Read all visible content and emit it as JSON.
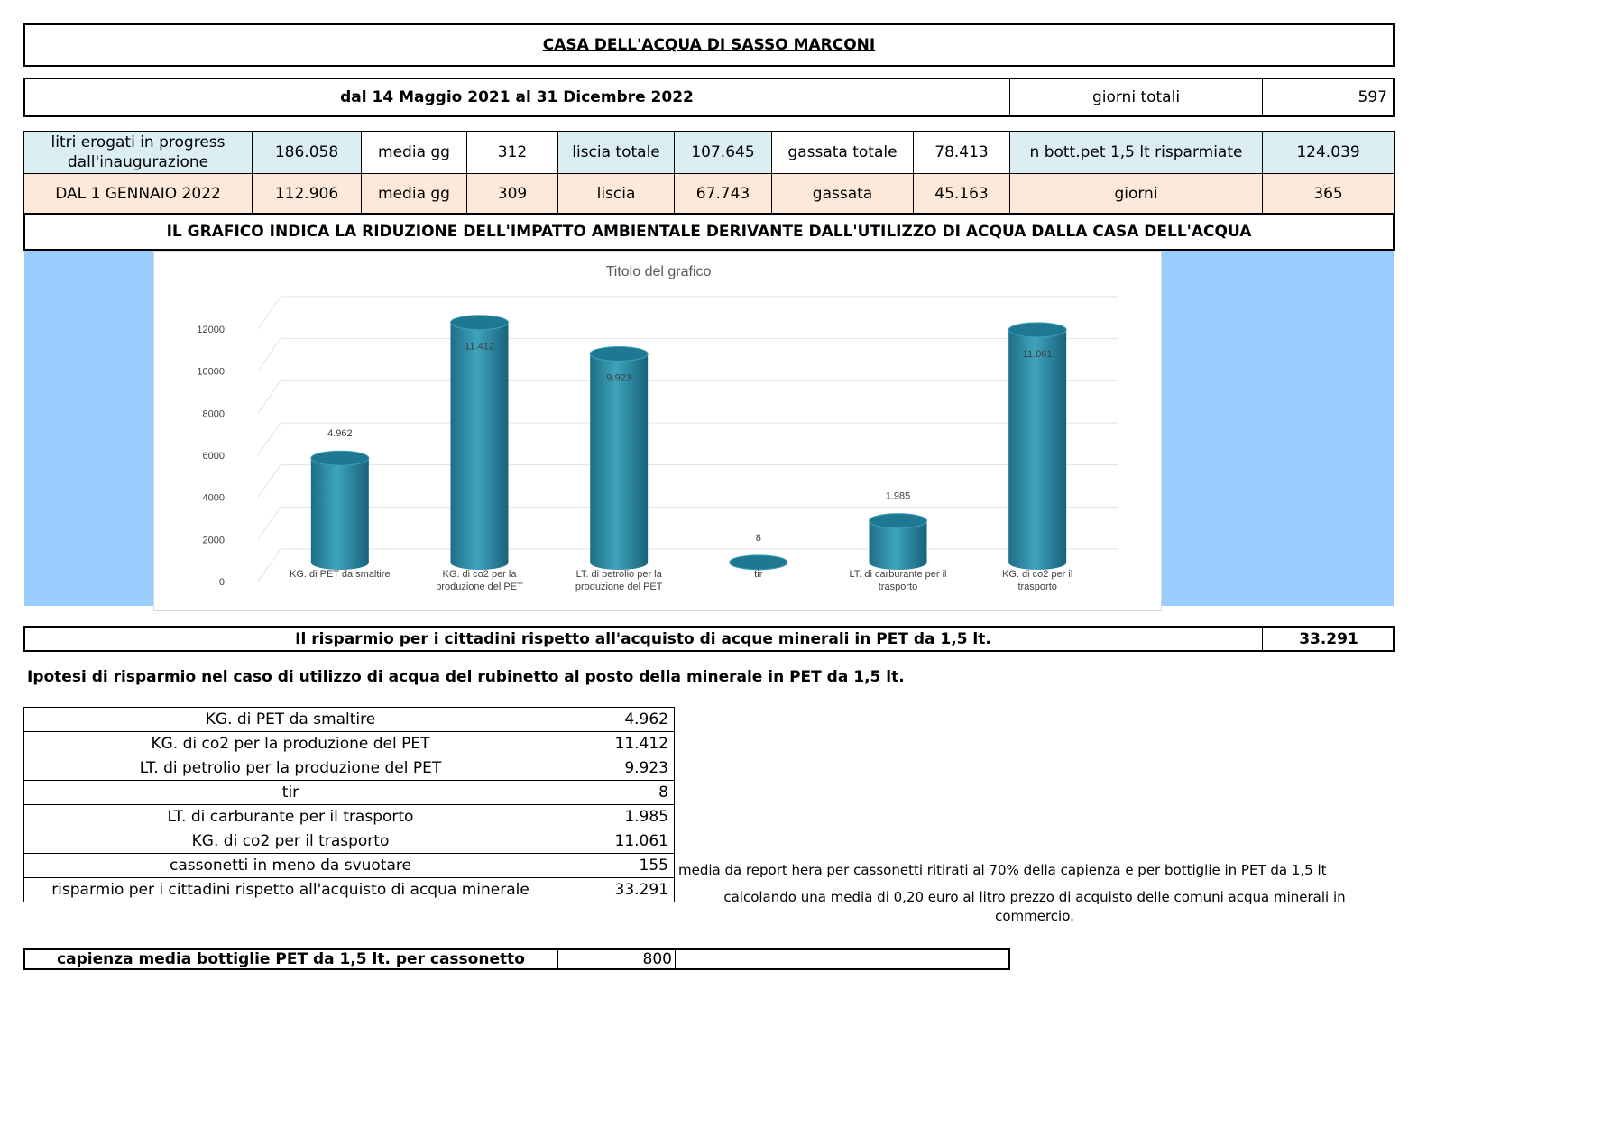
{
  "header": {
    "title": "CASA DELL'ACQUA DI SASSO MARCONI",
    "period": "dal 14 Maggio 2021 al 31 Dicembre 2022",
    "giorni_label": "giorni totali",
    "giorni_value": "597"
  },
  "row1": {
    "label": "litri erogati in progress dall'inaugurazione",
    "total": "186.058",
    "media_label": "media gg",
    "media": "312",
    "liscia_label": "liscia totale",
    "liscia": "107.645",
    "gassata_label": "gassata totale",
    "gassata": "78.413",
    "bott_label": "n bott.pet 1,5 lt risparmiate",
    "bott": "124.039"
  },
  "row2": {
    "label": "DAL 1 GENNAIO 2022",
    "total": "112.906",
    "media_label": "media gg",
    "media": "309",
    "liscia_label": "liscia",
    "liscia": "67.743",
    "gassata_label": "gassata",
    "gassata": "45.163",
    "giorni_label": "giorni",
    "giorni": "365"
  },
  "banner": "IL GRAFICO INDICA LA RIDUZIONE DELL'IMPATTO AMBIENTALE  DERIVANTE DALL'UTILIZZO DI ACQUA DALLA CASA DELL'ACQUA",
  "chart_data": {
    "type": "bar",
    "title": "Titolo del grafico",
    "categories": [
      "KG. di PET da smaltire",
      "KG. di co2  per la produzione del PET",
      "LT.  di petrolio per la produzione del PET",
      "tir",
      "LT. di carburante per il trasporto",
      "KG. di co2 per il trasporto"
    ],
    "values": [
      4962,
      11412,
      9923,
      8,
      1985,
      11061
    ],
    "value_labels": [
      "4.962",
      "11.412",
      "9.923",
      "8",
      "1.985",
      "11.061"
    ],
    "y_ticks": [
      "0",
      "2000",
      "4000",
      "6000",
      "8000",
      "10000",
      "12000"
    ],
    "ylim": [
      0,
      12000
    ],
    "grid": true,
    "color": "#2a8aa3",
    "style": "3d-cylinder"
  },
  "savings": {
    "label": "Il risparmio per i cittadini rispetto all'acquisto di acque minerali in PET da 1,5 lt.",
    "value": "33.291"
  },
  "hypothesis": "Ipotesi di risparmio nel caso di utilizzo di acqua del rubinetto al posto della minerale in PET da 1,5 lt.",
  "table": [
    {
      "label": "KG. di PET da smaltire",
      "value": "4.962"
    },
    {
      "label": "KG. di co2  per la produzione del PET",
      "value": "11.412"
    },
    {
      "label": "LT.  di petrolio per la produzione del PET",
      "value": "9.923"
    },
    {
      "label": "tir",
      "value": "8"
    },
    {
      "label": "LT. di carburante per il trasporto",
      "value": "1.985"
    },
    {
      "label": "KG. di co2 per il trasporto",
      "value": "11.061"
    },
    {
      "label": "cassonetti in meno da svuotare",
      "value": "155"
    },
    {
      "label": "risparmio per i cittadini rispetto all'acquisto di acqua minerale",
      "value": "33.291"
    }
  ],
  "notes": {
    "cassonetti": "media da report hera per cassonetti ritirati al 70% della capienza e per bottiglie in PET da 1,5 lt",
    "risparmio": "calcolando una media di 0,20 euro al litro prezzo di acquisto delle comuni acqua minerali in commercio."
  },
  "capienza": {
    "label": "capienza media bottiglie PET da 1,5 lt. per cassonetto",
    "value": "800"
  }
}
